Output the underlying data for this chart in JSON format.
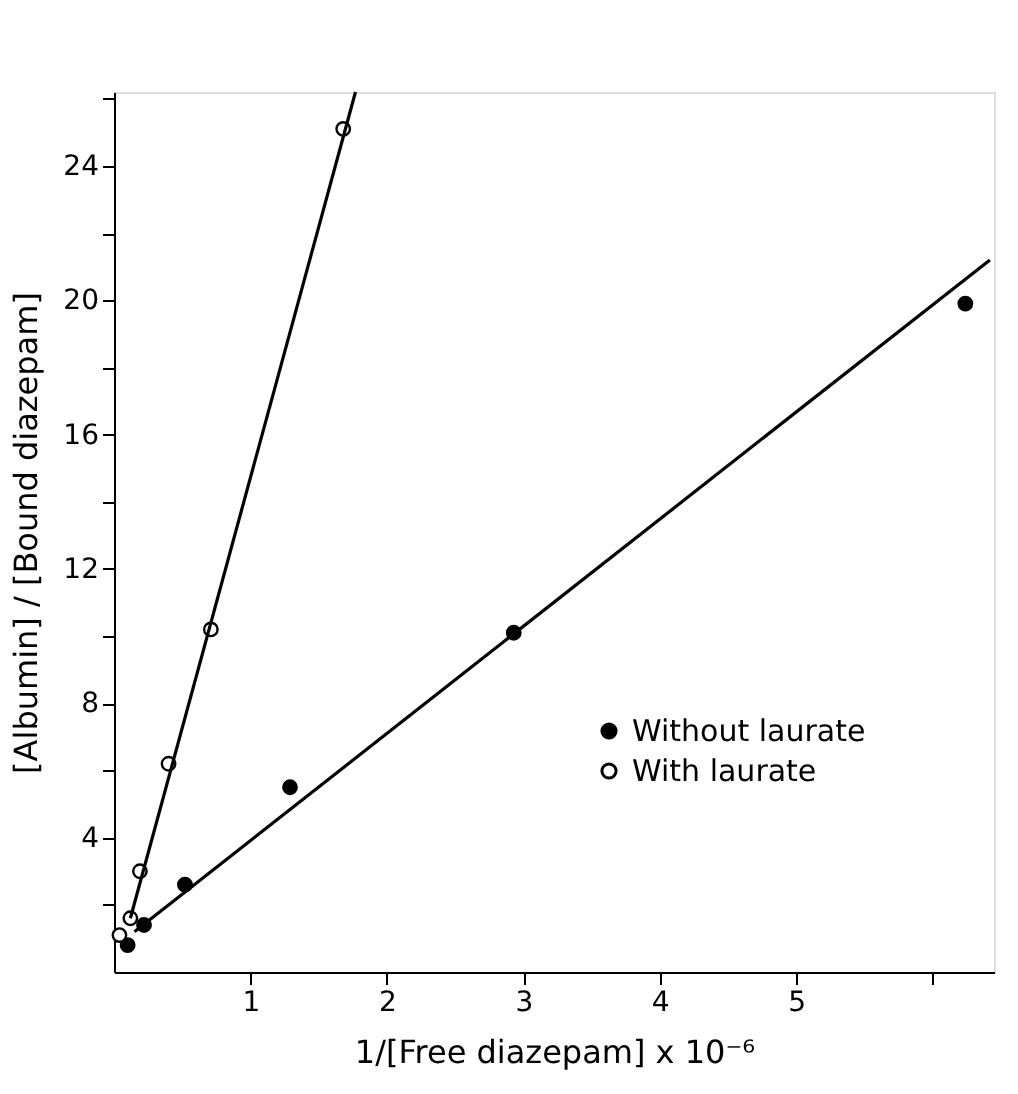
{
  "chart_data": {
    "type": "scatter",
    "xlabel": "1/[Free diazepam] x 10⁻⁶",
    "ylabel": "[Albumin] / [Bound diazepam]",
    "xlim": [
      0,
      6.45
    ],
    "ylim": [
      0,
      26.2
    ],
    "xticks": [
      1,
      2,
      3,
      4,
      5,
      {
        "value": 6,
        "label": null
      }
    ],
    "yticks": [
      {
        "value": 2,
        "label": null
      },
      4,
      {
        "value": 6,
        "label": null
      },
      8,
      {
        "value": 10,
        "label": null
      },
      12,
      {
        "value": 14,
        "label": null
      },
      16,
      {
        "value": 18,
        "label": null
      },
      20,
      {
        "value": 22,
        "label": null
      },
      24,
      {
        "value": 26,
        "label": null
      }
    ],
    "grid": false,
    "legend": "right",
    "marker": "circle",
    "series": [
      {
        "name": "Without laurate",
        "color": "#000000",
        "x": [
          0.1,
          0.22,
          0.52,
          1.29,
          2.93,
          6.24
        ],
        "values": [
          0.8,
          1.4,
          2.6,
          5.5,
          10.1,
          19.9
        ]
      },
      {
        "name": "With laurate",
        "color": "#000000",
        "x": [
          0.04,
          0.12,
          0.19,
          0.4,
          0.71,
          1.68
        ],
        "values": [
          1.1,
          1.6,
          3.0,
          6.2,
          10.2,
          25.1
        ]
      },
      {
        "type": "line",
        "color": "#000000",
        "marker": "none",
        "line_style": "solid",
        "x": [
          0.15,
          6.42
        ],
        "values": [
          1.2,
          21.2
        ]
      },
      {
        "type": "line",
        "color": "#000000",
        "marker": "none",
        "line_style": "solid",
        "x": [
          0.12,
          1.77
        ],
        "values": [
          1.6,
          26.2
        ]
      }
    ]
  }
}
